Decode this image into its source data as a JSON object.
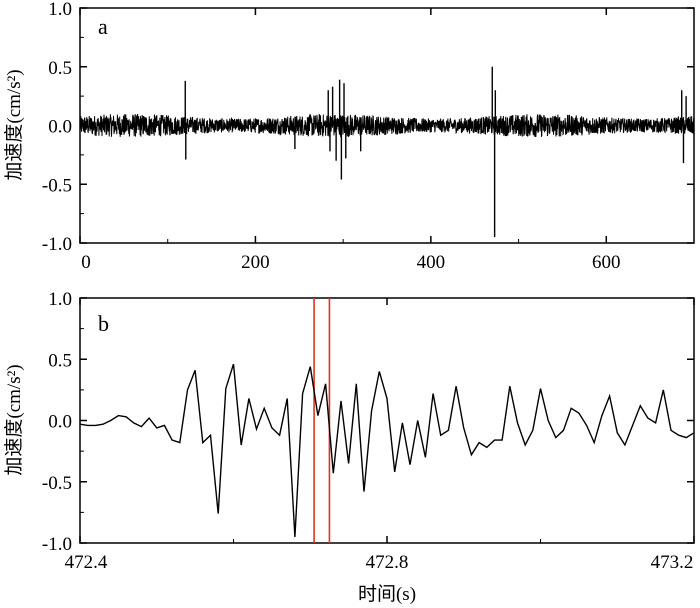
{
  "chart_data": [
    {
      "type": "line",
      "panel_label": "a",
      "ylabel": "加速度(cm/s²)",
      "xlabel": "",
      "xlim": [
        0,
        700
      ],
      "ylim": [
        -1.0,
        1.0
      ],
      "x_ticks": [
        0,
        200,
        400,
        600
      ],
      "x_tick_labels": [
        "0",
        "200",
        "400",
        "600"
      ],
      "y_ticks": [
        1.0,
        0.5,
        0.0,
        -0.5,
        -1.0
      ],
      "y_tick_labels": [
        "1.0",
        "0.5",
        "0.0",
        "-0.5",
        "-1.0"
      ],
      "series": [
        {
          "color": "#000000",
          "noise_band": [
            -0.1,
            0.1
          ],
          "spikes": [
            {
              "x": 120,
              "y": 0.38
            },
            {
              "x": 120.6,
              "y": -0.29
            },
            {
              "x": 245,
              "y": -0.2
            },
            {
              "x": 283,
              "y": 0.3
            },
            {
              "x": 285,
              "y": -0.22
            },
            {
              "x": 288,
              "y": 0.33
            },
            {
              "x": 292,
              "y": -0.3
            },
            {
              "x": 296,
              "y": 0.39
            },
            {
              "x": 298,
              "y": -0.46
            },
            {
              "x": 301,
              "y": 0.36
            },
            {
              "x": 303,
              "y": -0.28
            },
            {
              "x": 320,
              "y": -0.22
            },
            {
              "x": 470,
              "y": 0.5
            },
            {
              "x": 472.7,
              "y": -0.95
            },
            {
              "x": 473.5,
              "y": 0.3
            },
            {
              "x": 686,
              "y": 0.3
            },
            {
              "x": 688,
              "y": -0.32
            },
            {
              "x": 691,
              "y": 0.25
            }
          ]
        }
      ]
    },
    {
      "type": "line",
      "panel_label": "b",
      "ylabel": "加速度(cm/s²)",
      "xlabel": "时间(s)",
      "xlim": [
        472.4,
        473.2
      ],
      "ylim": [
        -1.0,
        1.0
      ],
      "x_ticks": [
        472.4,
        472.8,
        473.2
      ],
      "x_tick_labels": [
        "472.4",
        "472.8",
        "473.2"
      ],
      "y_ticks": [
        1.0,
        0.5,
        0.0,
        -0.5,
        -1.0
      ],
      "y_tick_labels": [
        "1.0",
        "0.5",
        "0.0",
        "-0.5",
        "-1.0"
      ],
      "vertical_markers": [
        {
          "x": 472.705,
          "color": "#e0301e"
        },
        {
          "x": 472.725,
          "color": "#e0301e"
        }
      ],
      "series": [
        {
          "color": "#000000",
          "x": [
            472.4,
            472.41,
            472.42,
            472.43,
            472.44,
            472.45,
            472.46,
            472.47,
            472.48,
            472.49,
            472.5,
            472.51,
            472.52,
            472.53,
            472.54,
            472.55,
            472.56,
            472.57,
            472.58,
            472.59,
            472.6,
            472.61,
            472.62,
            472.63,
            472.64,
            472.65,
            472.66,
            472.67,
            472.68,
            472.69,
            472.7,
            472.71,
            472.72,
            472.73,
            472.74,
            472.75,
            472.76,
            472.77,
            472.78,
            472.79,
            472.8,
            472.81,
            472.82,
            472.83,
            472.84,
            472.85,
            472.86,
            472.87,
            472.88,
            472.89,
            472.9,
            472.91,
            472.92,
            472.93,
            472.94,
            472.95,
            472.96,
            472.97,
            472.98,
            472.99,
            473.0,
            473.01,
            473.02,
            473.03,
            473.04,
            473.05,
            473.06,
            473.07,
            473.08,
            473.09,
            473.1,
            473.11,
            473.12,
            473.13,
            473.14,
            473.15,
            473.16,
            473.17,
            473.18,
            473.19,
            473.2
          ],
          "values": [
            -0.03,
            -0.04,
            -0.04,
            -0.03,
            0.0,
            0.04,
            0.03,
            -0.02,
            -0.05,
            0.02,
            -0.06,
            -0.04,
            -0.16,
            -0.18,
            0.25,
            0.41,
            -0.18,
            -0.12,
            -0.76,
            0.26,
            0.46,
            -0.2,
            0.18,
            -0.07,
            0.1,
            -0.06,
            -0.12,
            0.18,
            -0.95,
            0.22,
            0.44,
            0.04,
            0.3,
            -0.43,
            0.16,
            -0.35,
            0.3,
            -0.58,
            0.08,
            0.4,
            0.18,
            -0.42,
            -0.02,
            -0.36,
            0.0,
            -0.3,
            0.22,
            -0.12,
            -0.08,
            0.28,
            -0.06,
            -0.28,
            -0.18,
            -0.22,
            -0.16,
            -0.16,
            0.28,
            -0.02,
            -0.2,
            -0.08,
            0.26,
            0.0,
            -0.14,
            -0.08,
            0.1,
            0.06,
            -0.04,
            -0.18,
            0.04,
            0.2,
            -0.1,
            -0.2,
            -0.04,
            0.12,
            0.02,
            -0.02,
            0.25,
            -0.08,
            -0.12,
            -0.14,
            -0.1
          ],
          "note_points_count": 81
        }
      ]
    }
  ]
}
